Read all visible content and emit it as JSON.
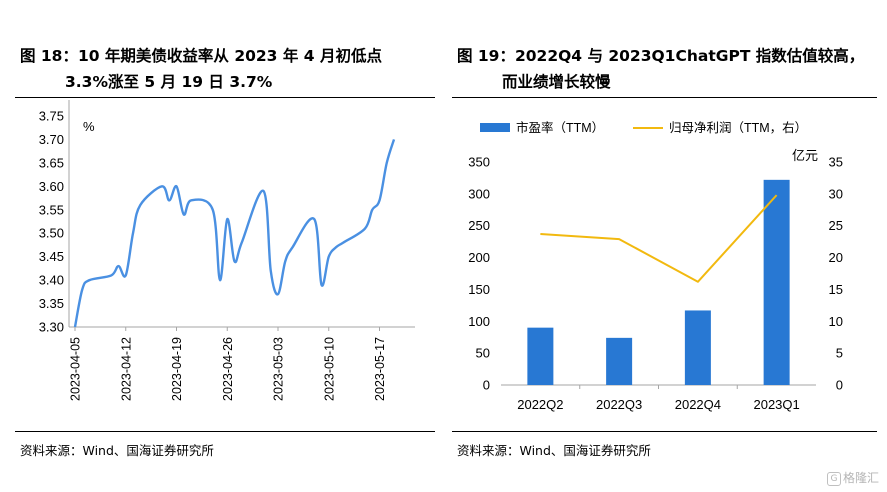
{
  "left": {
    "title_line1": "图 18：10 年期美债收益率从 2023 年 4 月初低点",
    "title_line2": "3.3%涨至 5 月 19 日 3.7%",
    "source": "资料来源：Wind、国海证券研究所"
  },
  "right": {
    "title_line1": "图 19：2022Q4 与 2023Q1ChatGPT 指数估值较高，",
    "title_line2": "而业绩增长较慢",
    "source": "资料来源：Wind、国海证券研究所"
  },
  "watermark": "格隆汇",
  "colors": {
    "line_blue": "#4a90e2",
    "bar_blue": "#2878d3",
    "line_gold": "#f2b90f"
  },
  "chart_data": [
    {
      "type": "line",
      "unit_label": "%",
      "ylim": [
        3.3,
        3.75
      ],
      "yticks": [
        "3.30",
        "3.35",
        "3.40",
        "3.45",
        "3.50",
        "3.55",
        "3.60",
        "3.65",
        "3.70",
        "3.75"
      ],
      "xticks": [
        "2023-04-05",
        "2023-04-12",
        "2023-04-19",
        "2023-04-26",
        "2023-05-03",
        "2023-05-10",
        "2023-05-17"
      ],
      "x": [
        "2023-04-05",
        "2023-04-06",
        "2023-04-07",
        "2023-04-10",
        "2023-04-11",
        "2023-04-12",
        "2023-04-13",
        "2023-04-14",
        "2023-04-17",
        "2023-04-18",
        "2023-04-19",
        "2023-04-20",
        "2023-04-21",
        "2023-04-24",
        "2023-04-25",
        "2023-04-26",
        "2023-04-27",
        "2023-04-28",
        "2023-05-01",
        "2023-05-02",
        "2023-05-03",
        "2023-05-04",
        "2023-05-05",
        "2023-05-08",
        "2023-05-09",
        "2023-05-10",
        "2023-05-11",
        "2023-05-12",
        "2023-05-15",
        "2023-05-16",
        "2023-05-17",
        "2023-05-18",
        "2023-05-19"
      ],
      "y": [
        3.3,
        3.38,
        3.4,
        3.41,
        3.43,
        3.41,
        3.5,
        3.56,
        3.6,
        3.57,
        3.6,
        3.54,
        3.57,
        3.55,
        3.4,
        3.53,
        3.44,
        3.48,
        3.59,
        3.42,
        3.37,
        3.44,
        3.47,
        3.53,
        3.39,
        3.45,
        3.47,
        3.48,
        3.51,
        3.55,
        3.57,
        3.65,
        3.7
      ],
      "grid": false
    },
    {
      "type": "bar",
      "categories": [
        "2022Q2",
        "2022Q3",
        "2022Q4",
        "2023Q1"
      ],
      "series": [
        {
          "name": "市盈率（TTM）",
          "kind": "bar",
          "axis": "left",
          "values": [
            90,
            74,
            117,
            322
          ]
        },
        {
          "name": "归母净利润（TTM，右）",
          "kind": "line",
          "axis": "right",
          "values": [
            23.7,
            22.9,
            16.2,
            29.8
          ]
        }
      ],
      "ylim": [
        0,
        350
      ],
      "y2lim": [
        0,
        35
      ],
      "yticks": [
        "0",
        "50",
        "100",
        "150",
        "200",
        "250",
        "300",
        "350"
      ],
      "y2ticks": [
        "0",
        "5",
        "10",
        "15",
        "20",
        "25",
        "30",
        "35"
      ],
      "y2label": "亿元",
      "legend": "top",
      "grid": false
    }
  ]
}
